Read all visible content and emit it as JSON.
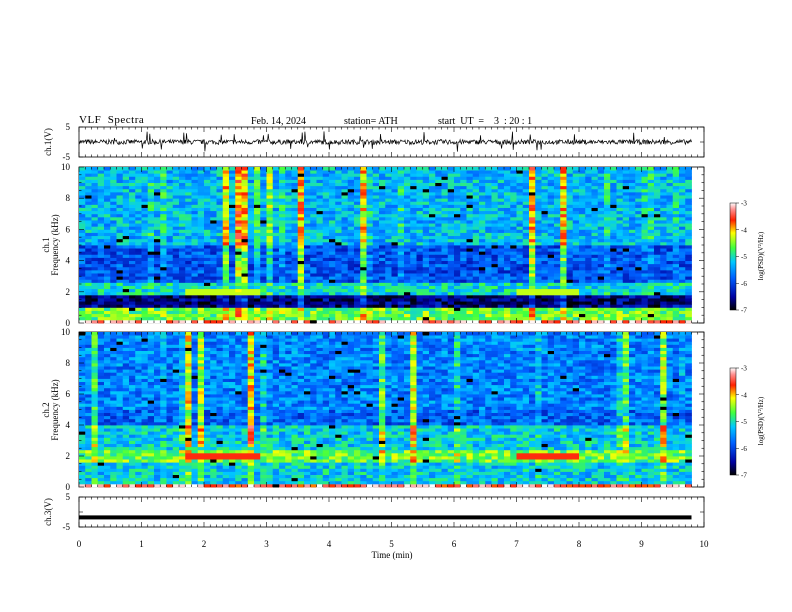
{
  "header": {
    "title": "VLF  Spectra",
    "date": "Feb. 14, 2024",
    "station": "station= ATH",
    "start": "start  UT  =    3  : 20 : 1"
  },
  "chart_data": [
    {
      "type": "line",
      "panel": "channel-1-waveform",
      "ylabel": "ch.1(V)",
      "ylim": [
        -5,
        5
      ],
      "yticks": [
        "5",
        "-5"
      ],
      "xlim": [
        0,
        10
      ],
      "trace_level": 0
    },
    {
      "type": "heatmap",
      "panel": "channel-1-spectrogram",
      "ylabel": "ch.1\nFrequency  (kHz)",
      "ylabel_top": "ch.1",
      "ylabel_bottom": "Frequency  (kHz)",
      "ylim": [
        0,
        10
      ],
      "yticks": [
        "0",
        "2",
        "4",
        "6",
        "8",
        "10"
      ],
      "xlim": [
        0,
        10
      ],
      "data_end_min": 9.8,
      "colorbar": {
        "label": "log(PSD)(V²/Hz)",
        "range": [
          -7,
          -3
        ],
        "ticks": [
          "-3",
          "-4",
          "-5",
          "-6",
          "-7"
        ]
      },
      "bands": [
        {
          "freq": [
            0,
            0.3
          ],
          "level": -3.2
        },
        {
          "freq": [
            0.3,
            1.0
          ],
          "level": -4.6
        },
        {
          "freq": [
            1.0,
            1.8
          ],
          "level": -6.6
        },
        {
          "freq": [
            1.8,
            2.6
          ],
          "level": -5.1
        },
        {
          "freq": [
            2.6,
            5.0
          ],
          "level": -5.9
        },
        {
          "freq": [
            5.0,
            10.0
          ],
          "level": -5.3
        }
      ],
      "lines": [
        {
          "freq": 2.1,
          "t": [
            1.75,
            2.9
          ],
          "level": -4.3
        },
        {
          "freq": 2.1,
          "t": [
            7.0,
            8.0
          ],
          "level": -4.3
        }
      ]
    },
    {
      "type": "heatmap",
      "panel": "channel-2-spectrogram",
      "ylabel_top": "ch.2",
      "ylabel_bottom": "Frequency  (kHz)",
      "ylim": [
        0,
        10
      ],
      "yticks": [
        "0",
        "2",
        "4",
        "6",
        "8",
        "10"
      ],
      "xlim": [
        0,
        10
      ],
      "data_end_min": 9.8,
      "colorbar": {
        "label": "log(PSD)(V²/Hz)",
        "range": [
          -7,
          -3
        ],
        "ticks": [
          "-3",
          "-4",
          "-5",
          "-6",
          "-7"
        ]
      },
      "bands": [
        {
          "freq": [
            0,
            0.2
          ],
          "level": -3.4
        },
        {
          "freq": [
            0.2,
            1.6
          ],
          "level": -5.2
        },
        {
          "freq": [
            1.6,
            2.4
          ],
          "level": -4.6
        },
        {
          "freq": [
            2.4,
            4.0
          ],
          "level": -5.2
        },
        {
          "freq": [
            4.0,
            5.0
          ],
          "level": -5.8
        },
        {
          "freq": [
            5.0,
            10.0
          ],
          "level": -5.6
        }
      ],
      "lines": [
        {
          "freq": 2.0,
          "t": [
            1.75,
            2.9
          ],
          "level": -3.6
        },
        {
          "freq": 2.0,
          "t": [
            7.0,
            8.0
          ],
          "level": -3.6
        }
      ]
    },
    {
      "type": "line",
      "panel": "channel-3-waveform",
      "ylabel": "ch.3(V)",
      "ylim": [
        -5,
        5
      ],
      "yticks": [
        "5",
        "-5"
      ],
      "xlim": [
        0,
        10
      ],
      "trace_level": -1.8,
      "xlabel": "Time  (min)",
      "xticks": [
        "0",
        "1",
        "2",
        "3",
        "4",
        "5",
        "6",
        "7",
        "8",
        "9",
        "10"
      ]
    }
  ]
}
